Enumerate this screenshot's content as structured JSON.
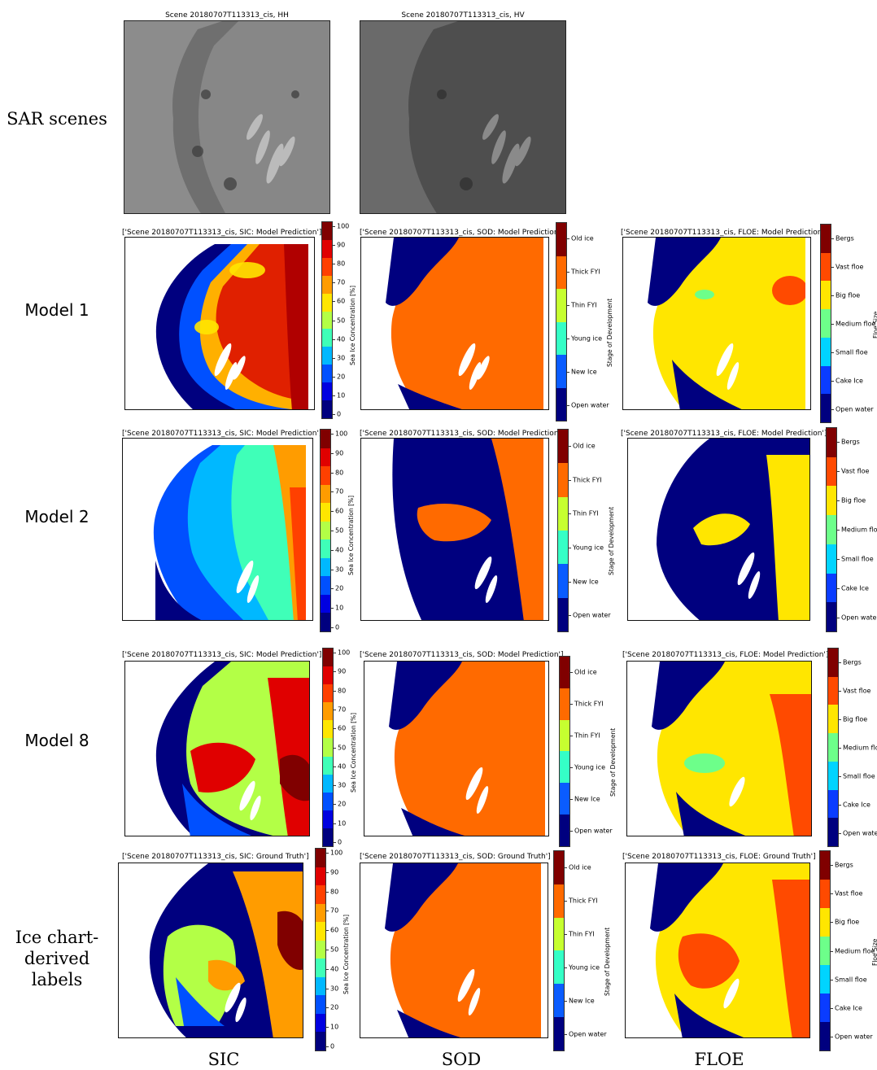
{
  "row_labels": {
    "sar": "SAR scenes",
    "model1": "Model 1",
    "model2": "Model 2",
    "model8": "Model 8",
    "gt": [
      "Ice chart-",
      "derived",
      "labels"
    ]
  },
  "column_labels": {
    "sic": "SIC",
    "sod": "SOD",
    "floe": "FLOE"
  },
  "sar_titles": {
    "hh": "Scene 20180707T113313_cis, HH",
    "hv": "Scene 20180707T113313_cis, HV"
  },
  "panel_titles": {
    "m_sic": "['Scene 20180707T113313_cis, SIC: Model Prediction']",
    "m_sod": "['Scene 20180707T113313_cis, SOD: Model Prediction']",
    "m_floe": "['Scene 20180707T113313_cis, FLOE: Model Prediction']",
    "g_sic": "['Scene 20180707T113313_cis, SIC: Ground Truth']",
    "g_sod": "['Scene 20180707T113313_cis, SOD: Ground Truth']",
    "g_floe": "['Scene 20180707T113313_cis, FLOE: Ground Truth']"
  },
  "colorbars": {
    "sic": {
      "title": "Sea Ice Concentration [%]",
      "ticks": [
        "100",
        "90",
        "80",
        "70",
        "60",
        "50",
        "40",
        "30",
        "20",
        "10",
        "0"
      ],
      "colors": [
        "#800000",
        "#e00000",
        "#ff4000",
        "#ff9c00",
        "#ffe600",
        "#b3ff46",
        "#3fffb8",
        "#00b8ff",
        "#0050ff",
        "#0000e0",
        "#00007f"
      ]
    },
    "sod": {
      "title": "Stage of Development",
      "ticks": [
        "Old ice",
        "Thick FYI",
        "Thin FYI",
        "Young ice",
        "New Ice",
        "Open water"
      ],
      "colors": [
        "#800000",
        "#ff6a00",
        "#c6ff30",
        "#35ffc6",
        "#0a5cff",
        "#00007f"
      ]
    },
    "floe": {
      "title": "Floe Size",
      "ticks": [
        "Bergs",
        "Vast floe",
        "Big floe",
        "Medium floe",
        "Small floe",
        "Cake Ice",
        "Open water"
      ],
      "colors": [
        "#800000",
        "#ff4a00",
        "#ffe600",
        "#6dff8a",
        "#00d4ff",
        "#0a3cff",
        "#00007f"
      ]
    }
  },
  "colors": {
    "open_water": "#00007f",
    "land": "#ffffff",
    "sar_bg": "#8a8a8a"
  }
}
